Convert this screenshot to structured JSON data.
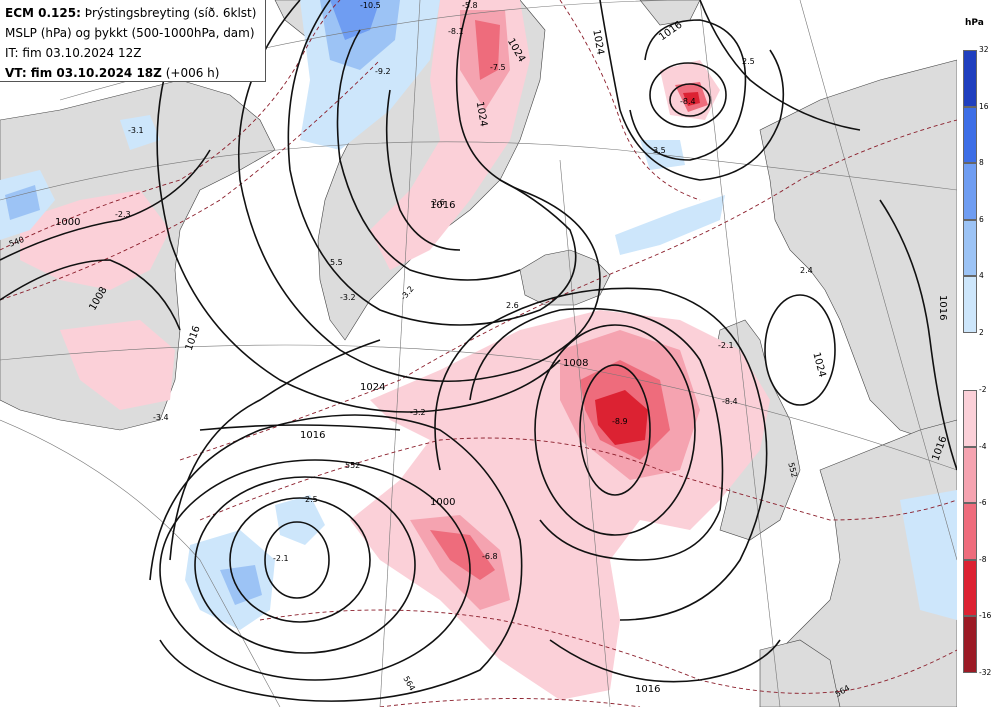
{
  "header": {
    "model": "ECM 0.125:",
    "title": "Þrýstingsbreyting (síð. 6klst)",
    "line2": "MSLP (hPa) og þykkt (500-1000hPa, dam)",
    "init_time": "IT: fim 03.10.2024 12Z",
    "valid_prefix": "VT: fim 03.10.2024 18Z",
    "valid_suffix": "(+006 h)"
  },
  "legend": {
    "unit": "hPa",
    "rise_ticks": [
      "32",
      "16",
      "8",
      "6",
      "4",
      "2"
    ],
    "rise_colors": [
      "#1f3fbf",
      "#3d6ee6",
      "#6f9df2",
      "#9cc3f5",
      "#cde6fb"
    ],
    "fall_ticks": [
      "-2",
      "-4",
      "-6",
      "-8",
      "-16",
      "-32"
    ],
    "fall_colors": [
      "#fbd0d8",
      "#f5a3b0",
      "#ee6c7c",
      "#dc2232",
      "#9b1a25"
    ]
  },
  "isobar_labels": [
    "1024",
    "1016",
    "1008",
    "1000",
    "1024",
    "1016",
    "1008",
    "1016",
    "1024",
    "1016",
    "1024",
    "1016",
    "1016",
    "1000",
    "1024",
    "1016"
  ],
  "thickness_labels": [
    "540",
    "552",
    "564",
    "552",
    "564"
  ],
  "change_labels": [
    "-10.5",
    "-5.8",
    "-8.1",
    "-7.5",
    "-9.2",
    "-3.1",
    "2.6",
    "-2.3",
    "5.5",
    "-3.2",
    "-3.4",
    "-3.2",
    "2.6",
    "-8.9",
    "-2.1",
    "-8.4",
    "2.5",
    "-2.1",
    "-6.8",
    "-8.4",
    "2.5",
    "3.5",
    "2.4",
    "-3.2"
  ]
}
